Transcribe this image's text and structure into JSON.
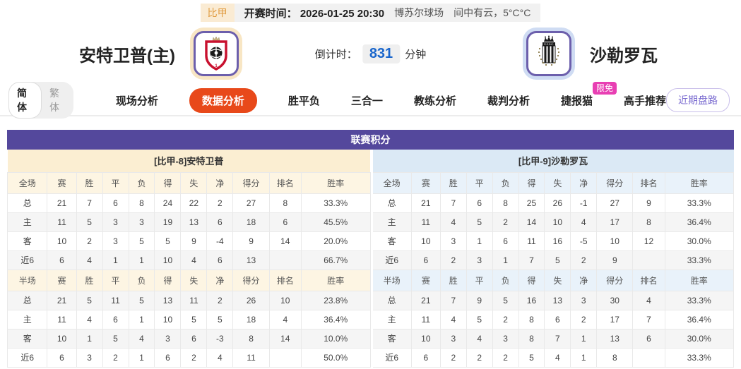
{
  "top_bar": {
    "league": "比甲",
    "kickoff": "开赛时间： 2026-01-25 20:30",
    "venue": "博苏尔球场",
    "weather": "间中有云，5°C°C"
  },
  "match_header": {
    "home_team": "安特卫普(主)",
    "away_team": "沙勒罗瓦",
    "countdown_label": "倒计时：",
    "countdown_value": "831",
    "countdown_unit": "分钟"
  },
  "nav": {
    "lang_simplified": "简体",
    "lang_traditional": "繁体",
    "tabs": [
      {
        "label": "现场分析",
        "active": false
      },
      {
        "label": "数据分析",
        "active": true
      },
      {
        "label": "胜平负",
        "active": false
      },
      {
        "label": "三合一",
        "active": false
      },
      {
        "label": "教练分析",
        "active": false
      },
      {
        "label": "裁判分析",
        "active": false
      },
      {
        "label": "捷报猫",
        "active": false,
        "badge": "限免"
      },
      {
        "label": "高手推荐",
        "active": false
      }
    ],
    "recent_button": "近期盘路"
  },
  "table": {
    "title": "联赛积分",
    "columns_full": [
      "全场",
      "赛",
      "胜",
      "平",
      "负",
      "得",
      "失",
      "净",
      "得分",
      "排名",
      "胜率"
    ],
    "columns_half": [
      "半场",
      "赛",
      "胜",
      "平",
      "负",
      "得",
      "失",
      "净",
      "得分",
      "排名",
      "胜率"
    ],
    "sides": [
      {
        "key": "home",
        "theme": "cream",
        "section_title": "[比甲-8]安特卫普",
        "full_rows": [
          {
            "label": "总",
            "values": [
              "21",
              "7",
              "6",
              "8",
              "24",
              "22",
              "2",
              "27",
              "8",
              "33.3%"
            ]
          },
          {
            "label": "主",
            "values": [
              "11",
              "5",
              "3",
              "3",
              "19",
              "13",
              "6",
              "18",
              "6",
              "45.5%"
            ]
          },
          {
            "label": "客",
            "values": [
              "10",
              "2",
              "3",
              "5",
              "5",
              "9",
              "-4",
              "9",
              "14",
              "20.0%"
            ]
          },
          {
            "label": "近6",
            "values": [
              "6",
              "4",
              "1",
              "1",
              "10",
              "4",
              "6",
              "13",
              "",
              "66.7%"
            ]
          }
        ],
        "half_rows": [
          {
            "label": "总",
            "values": [
              "21",
              "5",
              "11",
              "5",
              "13",
              "11",
              "2",
              "26",
              "10",
              "23.8%"
            ]
          },
          {
            "label": "主",
            "values": [
              "11",
              "4",
              "6",
              "1",
              "10",
              "5",
              "5",
              "18",
              "4",
              "36.4%"
            ]
          },
          {
            "label": "客",
            "values": [
              "10",
              "1",
              "5",
              "4",
              "3",
              "6",
              "-3",
              "8",
              "14",
              "10.0%"
            ]
          },
          {
            "label": "近6",
            "values": [
              "6",
              "3",
              "2",
              "1",
              "6",
              "2",
              "4",
              "11",
              "",
              "50.0%"
            ]
          }
        ]
      },
      {
        "key": "away",
        "theme": "blue",
        "section_title": "[比甲-9]沙勒罗瓦",
        "full_rows": [
          {
            "label": "总",
            "values": [
              "21",
              "7",
              "6",
              "8",
              "25",
              "26",
              "-1",
              "27",
              "9",
              "33.3%"
            ]
          },
          {
            "label": "主",
            "values": [
              "11",
              "4",
              "5",
              "2",
              "14",
              "10",
              "4",
              "17",
              "8",
              "36.4%"
            ]
          },
          {
            "label": "客",
            "values": [
              "10",
              "3",
              "1",
              "6",
              "11",
              "16",
              "-5",
              "10",
              "12",
              "30.0%"
            ]
          },
          {
            "label": "近6",
            "values": [
              "6",
              "2",
              "3",
              "1",
              "7",
              "5",
              "2",
              "9",
              "",
              "33.3%"
            ]
          }
        ],
        "half_rows": [
          {
            "label": "总",
            "values": [
              "21",
              "7",
              "9",
              "5",
              "16",
              "13",
              "3",
              "30",
              "4",
              "33.3%"
            ]
          },
          {
            "label": "主",
            "values": [
              "11",
              "4",
              "5",
              "2",
              "8",
              "6",
              "2",
              "17",
              "7",
              "36.4%"
            ]
          },
          {
            "label": "客",
            "values": [
              "10",
              "3",
              "4",
              "3",
              "8",
              "7",
              "1",
              "13",
              "6",
              "30.0%"
            ]
          },
          {
            "label": "近6",
            "values": [
              "6",
              "2",
              "2",
              "2",
              "5",
              "4",
              "1",
              "8",
              "",
              "33.3%"
            ]
          }
        ]
      }
    ]
  },
  "colors": {
    "table_header_purple": "#54489C",
    "active_tab_orange": "#E8491A",
    "badge_pink": "#E83FB3",
    "home_accent_cream": "#FBEED2",
    "away_accent_blue": "#DBE9F5",
    "countdown_blue": "#1A66CC",
    "home_row_red": "#D03030",
    "away_row_blue": "#2A50C8"
  }
}
